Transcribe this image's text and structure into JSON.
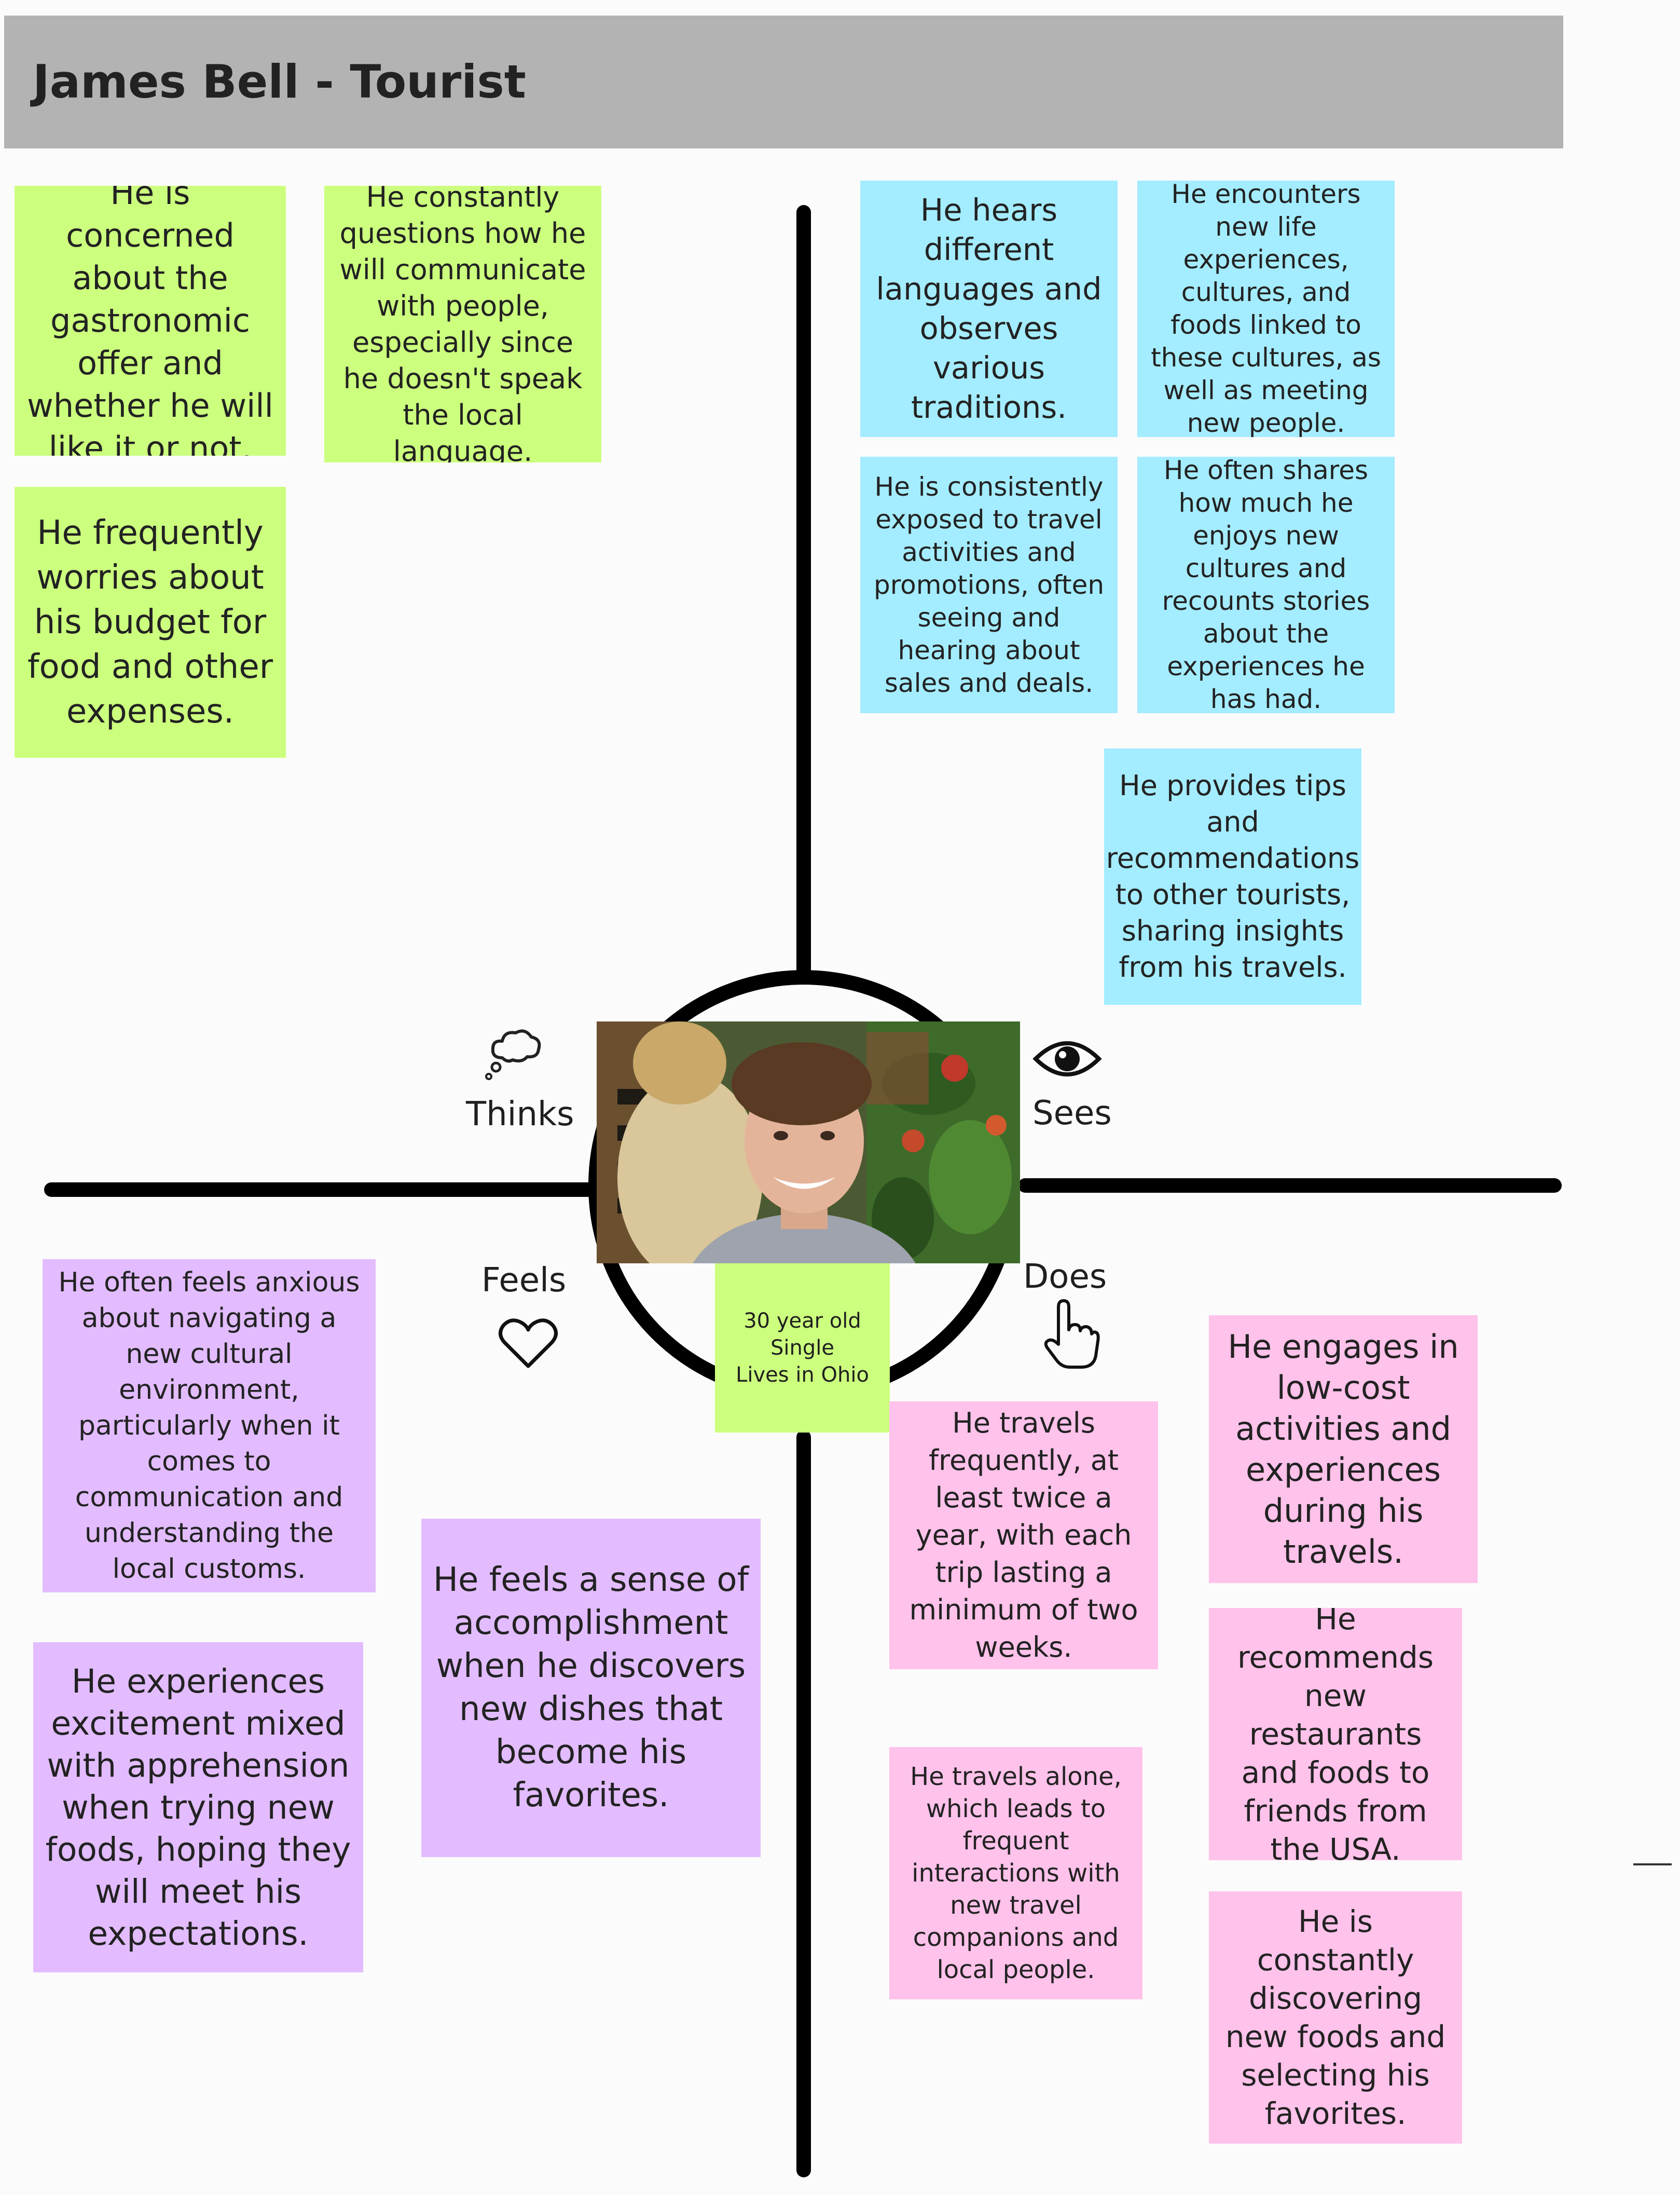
{
  "header": {
    "title": "James Bell - Tourist"
  },
  "profile": {
    "line1": "30 year old",
    "line2": "Single",
    "line3": "Lives in Ohio"
  },
  "quadrants": {
    "thinks": {
      "label": "Thinks",
      "icon": "thought-bubble-icon"
    },
    "sees": {
      "label": "Sees",
      "icon": "eye-icon"
    },
    "feels": {
      "label": "Feels",
      "icon": "heart-icon"
    },
    "does": {
      "label": "Does",
      "icon": "pointing-hand-icon"
    }
  },
  "notes": {
    "thinks": [
      "He is concerned about the gastronomic offer and whether he will like it or not.",
      "He constantly questions how he will communicate with people, especially since he doesn't speak the local language.",
      "He frequently worries about his budget for food and other expenses."
    ],
    "sees": [
      "He hears different languages and observes various traditions.",
      "He encounters new life experiences, cultures, and foods linked to these cultures, as well as meeting new people.",
      "He is consistently exposed to travel activities and promotions, often seeing and hearing about sales and deals.",
      "He often shares how much he enjoys new cultures and recounts stories about the experiences he has had.",
      "He provides tips and recommendations to other tourists, sharing insights from his travels."
    ],
    "feels": [
      "He often feels anxious about navigating a new cultural environment, particularly when it comes to communication and understanding the local customs.",
      "He feels a sense of accomplishment when he discovers new dishes that become his favorites.",
      "He experiences excitement mixed with apprehension when trying new foods, hoping they will meet his expectations."
    ],
    "does": [
      "He travels frequently, at least twice a year, with each trip lasting a minimum of two weeks.",
      "He engages in low-cost activities and experiences during his travels.",
      "He recommends new restaurants and foods to friends from the USA.",
      "He travels alone, which leads to frequent interactions with new travel companions and local people.",
      "He is constantly discovering new foods and selecting his favorites."
    ]
  },
  "colors": {
    "thinks": "#ccff7e",
    "sees": "#a4ecff",
    "feels": "#e2bcff",
    "does": "#ffc2ea",
    "header": "#b3b3b3"
  }
}
